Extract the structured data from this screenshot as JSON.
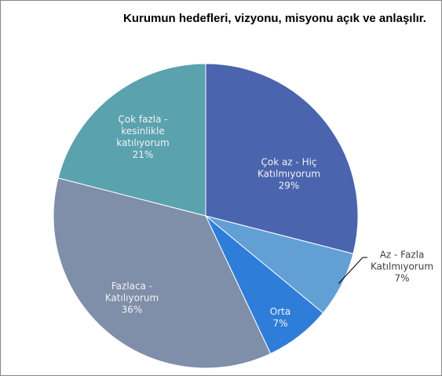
{
  "chart_data": {
    "type": "pie",
    "title": "Kurumun hedefleri, vizyonu, misyonu açık ve anlaşılır.",
    "categories": [
      "Çok az - Hiç Katılmıyorum",
      "Az - Fazla Katılmıyorum",
      "Orta",
      "Fazlaca - Katılıyorum",
      "Çok fazla - kesinlikle katılıyorum"
    ],
    "values": [
      29,
      7,
      7,
      36,
      21
    ],
    "value_labels": [
      "29%",
      "7%",
      "7%",
      "36%",
      "21%"
    ],
    "colors": [
      "#4a64ad",
      "#629fd5",
      "#2e7ed9",
      "#7f8ea9",
      "#5aa2ae"
    ]
  }
}
